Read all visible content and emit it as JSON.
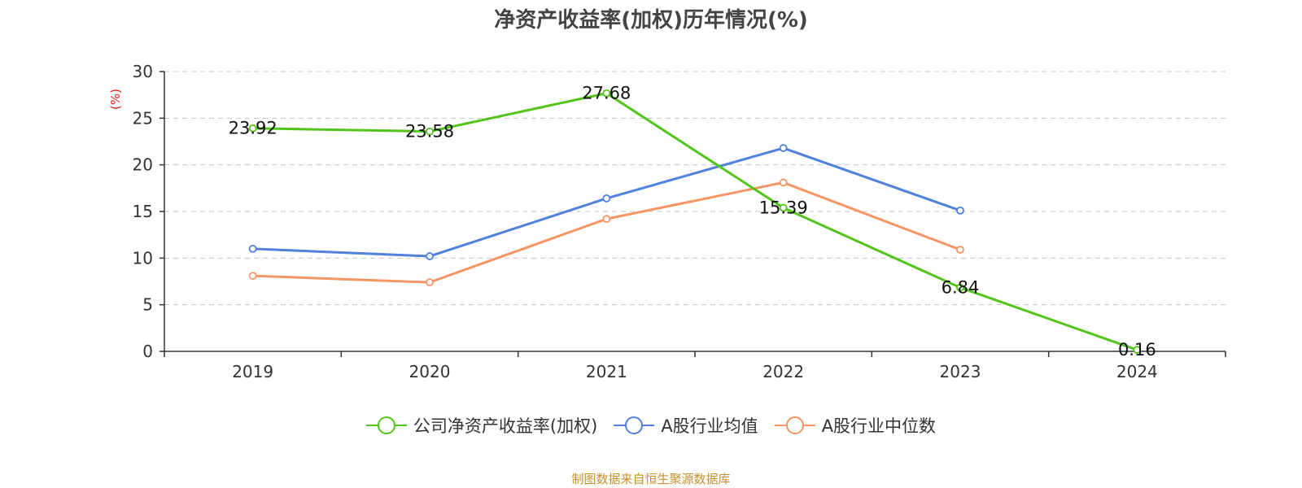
{
  "title": "净资产收益率(加权)历年情况(%)",
  "source_note": "制图数据来自恒生聚源数据库",
  "colors": {
    "company": "#52c41a",
    "industry_avg": "#4f81dd",
    "industry_median": "#f79464",
    "unit": "#e02020"
  },
  "chart_data": {
    "type": "line",
    "title": "净资产收益率(加权)历年情况(%)",
    "ylabel": "(%)",
    "categories": [
      "2019",
      "2020",
      "2021",
      "2022",
      "2023",
      "2024"
    ],
    "ylim": [
      0,
      30
    ],
    "yticks": [
      0,
      5,
      10,
      15,
      20,
      25,
      30
    ],
    "grid": true,
    "legend_position": "bottom",
    "series": [
      {
        "name": "公司净资产收益率(加权)",
        "values": [
          23.92,
          23.58,
          27.68,
          15.39,
          6.84,
          0.16
        ],
        "labels": [
          "23.92",
          "23.58",
          "27.68",
          "15.39",
          "6.84",
          "0.16"
        ],
        "color": "#52c41a"
      },
      {
        "name": "A股行业均值",
        "values": [
          11.0,
          10.2,
          16.4,
          21.8,
          15.1,
          null
        ],
        "color": "#4f81dd"
      },
      {
        "name": "A股行业中位数",
        "values": [
          8.1,
          7.4,
          14.2,
          18.1,
          10.9,
          null
        ],
        "color": "#f79464"
      }
    ]
  }
}
